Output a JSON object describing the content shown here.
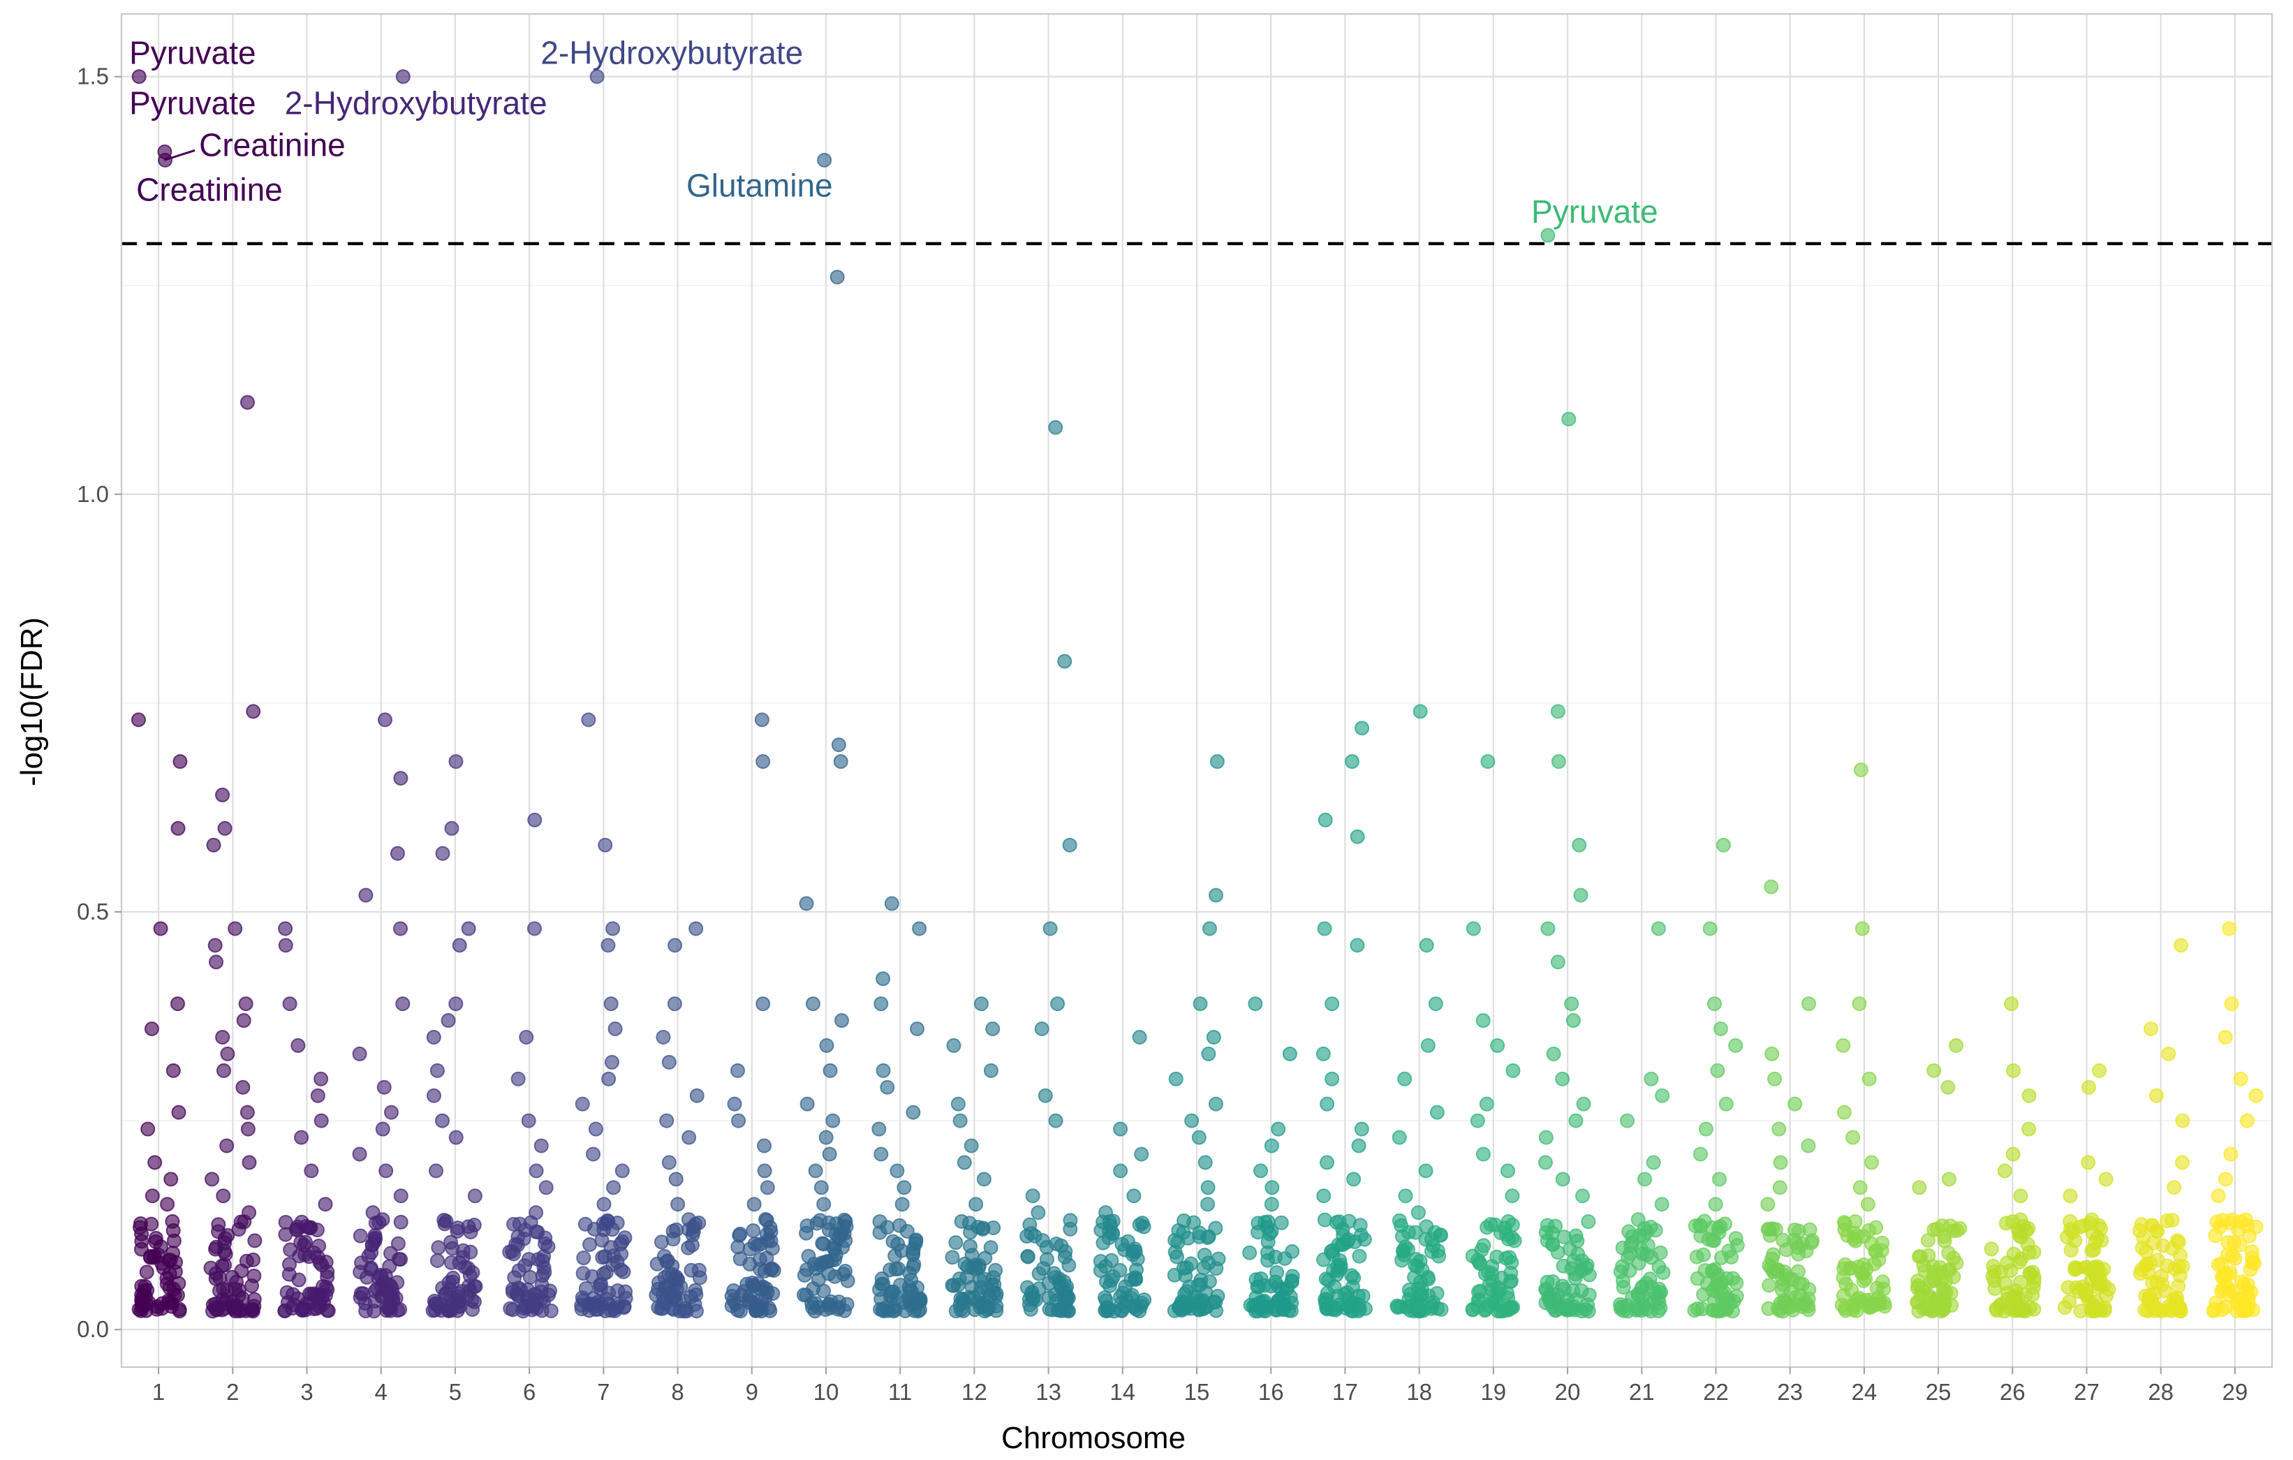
{
  "chart_data": {
    "type": "scatter",
    "title": "",
    "xlabel": "Chromosome",
    "ylabel": "-log10(FDR)",
    "categories": [
      "1",
      "2",
      "3",
      "4",
      "5",
      "6",
      "7",
      "8",
      "9",
      "10",
      "11",
      "12",
      "13",
      "14",
      "15",
      "16",
      "17",
      "18",
      "19",
      "20",
      "21",
      "22",
      "23",
      "24",
      "25",
      "26",
      "27",
      "28",
      "29"
    ],
    "xlim": [
      0.5,
      29.5
    ],
    "ylim": [
      -0.045,
      1.575
    ],
    "y_ticks": [
      0.0,
      0.5,
      1.0,
      1.5
    ],
    "y_tick_labels": [
      "0.0",
      "0.5",
      "1.0",
      "1.5"
    ],
    "grid": true,
    "legend": "none",
    "threshold": 1.3,
    "palette": [
      "#440154",
      "#482173",
      "#433E85",
      "#38598C",
      "#2D708E",
      "#25858E",
      "#1E9B8A",
      "#2BB07F",
      "#51C56A",
      "#85D54A",
      "#C2DF23",
      "#FDE725"
    ],
    "points": [
      [
        1,
        1.5
      ],
      [
        1,
        1.4
      ],
      [
        1,
        1.41
      ],
      [
        1,
        0.73
      ],
      [
        1,
        0.68
      ],
      [
        1,
        0.6
      ],
      [
        1,
        0.48
      ],
      [
        1,
        0.39
      ],
      [
        1,
        0.36
      ],
      [
        1,
        0.31
      ],
      [
        1,
        0.26
      ],
      [
        1,
        0.24
      ],
      [
        1,
        0.2
      ],
      [
        1,
        0.18
      ],
      [
        1,
        0.16
      ],
      [
        1,
        0.15
      ],
      [
        2,
        1.11
      ],
      [
        2,
        0.74
      ],
      [
        2,
        0.64
      ],
      [
        2,
        0.6
      ],
      [
        2,
        0.58
      ],
      [
        2,
        0.48
      ],
      [
        2,
        0.46
      ],
      [
        2,
        0.44
      ],
      [
        2,
        0.39
      ],
      [
        2,
        0.37
      ],
      [
        2,
        0.35
      ],
      [
        2,
        0.33
      ],
      [
        2,
        0.31
      ],
      [
        2,
        0.29
      ],
      [
        2,
        0.26
      ],
      [
        2,
        0.24
      ],
      [
        2,
        0.22
      ],
      [
        2,
        0.2
      ],
      [
        2,
        0.18
      ],
      [
        2,
        0.16
      ],
      [
        2,
        0.14
      ],
      [
        3,
        0.48
      ],
      [
        3,
        0.46
      ],
      [
        3,
        0.39
      ],
      [
        3,
        0.34
      ],
      [
        3,
        0.3
      ],
      [
        3,
        0.28
      ],
      [
        3,
        0.25
      ],
      [
        3,
        0.23
      ],
      [
        3,
        0.19
      ],
      [
        3,
        0.15
      ],
      [
        4,
        1.5
      ],
      [
        4,
        0.73
      ],
      [
        4,
        0.66
      ],
      [
        4,
        0.57
      ],
      [
        4,
        0.52
      ],
      [
        4,
        0.48
      ],
      [
        4,
        0.39
      ],
      [
        4,
        0.33
      ],
      [
        4,
        0.29
      ],
      [
        4,
        0.26
      ],
      [
        4,
        0.24
      ],
      [
        4,
        0.21
      ],
      [
        4,
        0.19
      ],
      [
        4,
        0.16
      ],
      [
        4,
        0.14
      ],
      [
        5,
        0.68
      ],
      [
        5,
        0.6
      ],
      [
        5,
        0.57
      ],
      [
        5,
        0.48
      ],
      [
        5,
        0.46
      ],
      [
        5,
        0.39
      ],
      [
        5,
        0.37
      ],
      [
        5,
        0.35
      ],
      [
        5,
        0.31
      ],
      [
        5,
        0.28
      ],
      [
        5,
        0.25
      ],
      [
        5,
        0.23
      ],
      [
        5,
        0.19
      ],
      [
        5,
        0.16
      ],
      [
        6,
        0.61
      ],
      [
        6,
        0.48
      ],
      [
        6,
        0.35
      ],
      [
        6,
        0.3
      ],
      [
        6,
        0.25
      ],
      [
        6,
        0.22
      ],
      [
        6,
        0.19
      ],
      [
        6,
        0.17
      ],
      [
        6,
        0.14
      ],
      [
        7,
        1.5
      ],
      [
        7,
        0.73
      ],
      [
        7,
        0.58
      ],
      [
        7,
        0.48
      ],
      [
        7,
        0.46
      ],
      [
        7,
        0.39
      ],
      [
        7,
        0.36
      ],
      [
        7,
        0.32
      ],
      [
        7,
        0.3
      ],
      [
        7,
        0.27
      ],
      [
        7,
        0.24
      ],
      [
        7,
        0.21
      ],
      [
        7,
        0.19
      ],
      [
        7,
        0.17
      ],
      [
        7,
        0.15
      ],
      [
        8,
        0.48
      ],
      [
        8,
        0.46
      ],
      [
        8,
        0.39
      ],
      [
        8,
        0.35
      ],
      [
        8,
        0.32
      ],
      [
        8,
        0.28
      ],
      [
        8,
        0.25
      ],
      [
        8,
        0.23
      ],
      [
        8,
        0.2
      ],
      [
        8,
        0.18
      ],
      [
        8,
        0.15
      ],
      [
        9,
        0.73
      ],
      [
        9,
        0.68
      ],
      [
        9,
        0.39
      ],
      [
        9,
        0.31
      ],
      [
        9,
        0.27
      ],
      [
        9,
        0.25
      ],
      [
        9,
        0.22
      ],
      [
        9,
        0.19
      ],
      [
        9,
        0.17
      ],
      [
        9,
        0.15
      ],
      [
        10,
        1.4
      ],
      [
        10,
        1.26
      ],
      [
        10,
        0.7
      ],
      [
        10,
        0.68
      ],
      [
        10,
        0.51
      ],
      [
        10,
        0.39
      ],
      [
        10,
        0.37
      ],
      [
        10,
        0.34
      ],
      [
        10,
        0.31
      ],
      [
        10,
        0.27
      ],
      [
        10,
        0.25
      ],
      [
        10,
        0.23
      ],
      [
        10,
        0.21
      ],
      [
        10,
        0.19
      ],
      [
        10,
        0.17
      ],
      [
        10,
        0.15
      ],
      [
        11,
        0.51
      ],
      [
        11,
        0.48
      ],
      [
        11,
        0.42
      ],
      [
        11,
        0.39
      ],
      [
        11,
        0.36
      ],
      [
        11,
        0.31
      ],
      [
        11,
        0.29
      ],
      [
        11,
        0.26
      ],
      [
        11,
        0.24
      ],
      [
        11,
        0.21
      ],
      [
        11,
        0.19
      ],
      [
        11,
        0.17
      ],
      [
        11,
        0.15
      ],
      [
        12,
        0.39
      ],
      [
        12,
        0.36
      ],
      [
        12,
        0.34
      ],
      [
        12,
        0.31
      ],
      [
        12,
        0.27
      ],
      [
        12,
        0.25
      ],
      [
        12,
        0.22
      ],
      [
        12,
        0.2
      ],
      [
        12,
        0.18
      ],
      [
        12,
        0.15
      ],
      [
        13,
        1.08
      ],
      [
        13,
        0.8
      ],
      [
        13,
        0.58
      ],
      [
        13,
        0.48
      ],
      [
        13,
        0.39
      ],
      [
        13,
        0.36
      ],
      [
        13,
        0.28
      ],
      [
        13,
        0.25
      ],
      [
        13,
        0.16
      ],
      [
        13,
        0.14
      ],
      [
        14,
        0.35
      ],
      [
        14,
        0.24
      ],
      [
        14,
        0.21
      ],
      [
        14,
        0.19
      ],
      [
        14,
        0.16
      ],
      [
        14,
        0.14
      ],
      [
        15,
        0.68
      ],
      [
        15,
        0.52
      ],
      [
        15,
        0.48
      ],
      [
        15,
        0.39
      ],
      [
        15,
        0.35
      ],
      [
        15,
        0.33
      ],
      [
        15,
        0.3
      ],
      [
        15,
        0.27
      ],
      [
        15,
        0.25
      ],
      [
        15,
        0.23
      ],
      [
        15,
        0.2
      ],
      [
        15,
        0.17
      ],
      [
        15,
        0.15
      ],
      [
        16,
        0.39
      ],
      [
        16,
        0.33
      ],
      [
        16,
        0.24
      ],
      [
        16,
        0.22
      ],
      [
        16,
        0.19
      ],
      [
        16,
        0.17
      ],
      [
        16,
        0.15
      ],
      [
        17,
        0.72
      ],
      [
        17,
        0.68
      ],
      [
        17,
        0.61
      ],
      [
        17,
        0.59
      ],
      [
        17,
        0.48
      ],
      [
        17,
        0.46
      ],
      [
        17,
        0.39
      ],
      [
        17,
        0.33
      ],
      [
        17,
        0.3
      ],
      [
        17,
        0.27
      ],
      [
        17,
        0.24
      ],
      [
        17,
        0.22
      ],
      [
        17,
        0.2
      ],
      [
        17,
        0.18
      ],
      [
        17,
        0.16
      ],
      [
        18,
        0.74
      ],
      [
        18,
        0.46
      ],
      [
        18,
        0.39
      ],
      [
        18,
        0.34
      ],
      [
        18,
        0.3
      ],
      [
        18,
        0.26
      ],
      [
        18,
        0.23
      ],
      [
        18,
        0.19
      ],
      [
        18,
        0.16
      ],
      [
        18,
        0.14
      ],
      [
        19,
        0.68
      ],
      [
        19,
        0.48
      ],
      [
        19,
        0.37
      ],
      [
        19,
        0.34
      ],
      [
        19,
        0.31
      ],
      [
        19,
        0.27
      ],
      [
        19,
        0.25
      ],
      [
        19,
        0.21
      ],
      [
        19,
        0.19
      ],
      [
        19,
        0.16
      ],
      [
        20,
        1.31
      ],
      [
        20,
        1.09
      ],
      [
        20,
        0.74
      ],
      [
        20,
        0.68
      ],
      [
        20,
        0.58
      ],
      [
        20,
        0.52
      ],
      [
        20,
        0.48
      ],
      [
        20,
        0.44
      ],
      [
        20,
        0.39
      ],
      [
        20,
        0.37
      ],
      [
        20,
        0.33
      ],
      [
        20,
        0.3
      ],
      [
        20,
        0.27
      ],
      [
        20,
        0.25
      ],
      [
        20,
        0.23
      ],
      [
        20,
        0.2
      ],
      [
        20,
        0.18
      ],
      [
        20,
        0.16
      ],
      [
        21,
        0.48
      ],
      [
        21,
        0.3
      ],
      [
        21,
        0.28
      ],
      [
        21,
        0.25
      ],
      [
        21,
        0.2
      ],
      [
        21,
        0.18
      ],
      [
        21,
        0.15
      ],
      [
        22,
        0.58
      ],
      [
        22,
        0.48
      ],
      [
        22,
        0.39
      ],
      [
        22,
        0.36
      ],
      [
        22,
        0.34
      ],
      [
        22,
        0.31
      ],
      [
        22,
        0.27
      ],
      [
        22,
        0.24
      ],
      [
        22,
        0.21
      ],
      [
        22,
        0.18
      ],
      [
        22,
        0.15
      ],
      [
        23,
        0.53
      ],
      [
        23,
        0.39
      ],
      [
        23,
        0.33
      ],
      [
        23,
        0.3
      ],
      [
        23,
        0.27
      ],
      [
        23,
        0.24
      ],
      [
        23,
        0.22
      ],
      [
        23,
        0.2
      ],
      [
        23,
        0.17
      ],
      [
        23,
        0.15
      ],
      [
        24,
        0.67
      ],
      [
        24,
        0.48
      ],
      [
        24,
        0.39
      ],
      [
        24,
        0.34
      ],
      [
        24,
        0.3
      ],
      [
        24,
        0.26
      ],
      [
        24,
        0.23
      ],
      [
        24,
        0.2
      ],
      [
        24,
        0.17
      ],
      [
        24,
        0.15
      ],
      [
        25,
        0.34
      ],
      [
        25,
        0.31
      ],
      [
        25,
        0.29
      ],
      [
        25,
        0.18
      ],
      [
        25,
        0.17
      ],
      [
        26,
        0.39
      ],
      [
        26,
        0.31
      ],
      [
        26,
        0.28
      ],
      [
        26,
        0.24
      ],
      [
        26,
        0.21
      ],
      [
        26,
        0.19
      ],
      [
        26,
        0.16
      ],
      [
        27,
        0.31
      ],
      [
        27,
        0.29
      ],
      [
        27,
        0.2
      ],
      [
        27,
        0.18
      ],
      [
        27,
        0.16
      ],
      [
        28,
        0.46
      ],
      [
        28,
        0.36
      ],
      [
        28,
        0.33
      ],
      [
        28,
        0.28
      ],
      [
        28,
        0.25
      ],
      [
        28,
        0.2
      ],
      [
        28,
        0.17
      ],
      [
        29,
        0.48
      ],
      [
        29,
        0.39
      ],
      [
        29,
        0.35
      ],
      [
        29,
        0.3
      ],
      [
        29,
        0.28
      ],
      [
        29,
        0.25
      ],
      [
        29,
        0.21
      ],
      [
        29,
        0.18
      ],
      [
        29,
        0.16
      ]
    ],
    "annotations": [
      {
        "text": "Pyruvate",
        "x": 1,
        "y": 1.5
      },
      {
        "text": "Pyruvate",
        "x": 1,
        "y": 1.5
      },
      {
        "text": "Creatinine",
        "x": 1,
        "y": 1.4
      },
      {
        "text": "Creatinine",
        "x": 1,
        "y": 1.41
      },
      {
        "text": "2-Hydroxybutyrate",
        "x": 4,
        "y": 1.5
      },
      {
        "text": "2-Hydroxybutyrate",
        "x": 7,
        "y": 1.5
      },
      {
        "text": "Glutamine",
        "x": 10,
        "y": 1.4
      },
      {
        "text": "Pyruvate",
        "x": 20,
        "y": 1.31
      }
    ]
  }
}
